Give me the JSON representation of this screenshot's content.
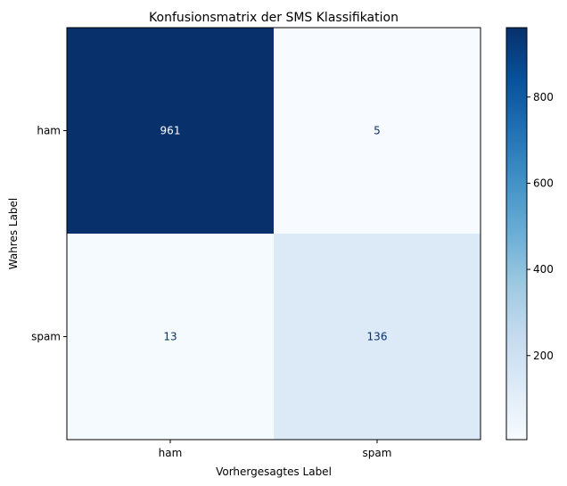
{
  "chart_data": {
    "type": "heatmap",
    "title": "Konfusionsmatrix der SMS Klassifikation",
    "xlabel": "Vorhergesagtes Label",
    "ylabel": "Wahres Label",
    "x_categories": [
      "ham",
      "spam"
    ],
    "y_categories": [
      "ham",
      "spam"
    ],
    "values": [
      [
        961,
        5
      ],
      [
        13,
        136
      ]
    ],
    "colormap": "Blues",
    "colorbar": {
      "min": 5,
      "max": 961,
      "ticks": [
        200,
        400,
        600,
        800
      ],
      "tick_labels": [
        "200",
        "400",
        "600",
        "800"
      ]
    },
    "text_colors": {
      "light": "#ffffff",
      "dark": "#08306b"
    },
    "grid": false
  }
}
